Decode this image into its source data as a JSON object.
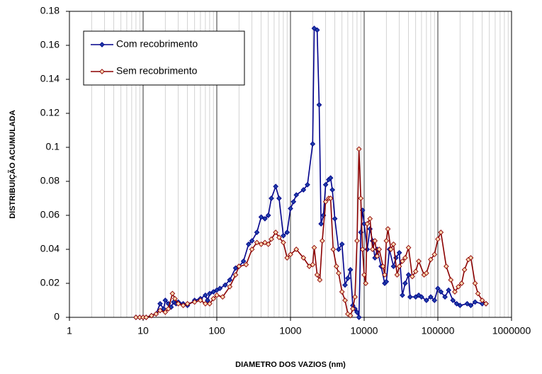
{
  "chart_data": {
    "type": "line",
    "xlabel": "DIAMETRO DOS VAZIOS (nm)",
    "ylabel": "DISTRIBUIÇÃO ACUMULADA",
    "xscale": "log",
    "xlim": [
      1,
      1000000
    ],
    "xticks": [
      1,
      10,
      100,
      1000,
      10000,
      100000,
      1000000
    ],
    "ylim": [
      0,
      0.18
    ],
    "yticks": [
      0,
      0.02,
      0.04,
      0.06,
      0.08,
      0.1,
      0.12,
      0.14,
      0.16,
      0.18
    ],
    "grid": true,
    "minor_grid": true,
    "legend": "upper left",
    "series": [
      {
        "name": "Com recobrimento",
        "color": "#00008b",
        "marker_fill": "#1f3fa8",
        "x": [
          8,
          9,
          10,
          11,
          13,
          15,
          17,
          19,
          20,
          22,
          24,
          26,
          28,
          30,
          35,
          40,
          50,
          60,
          70,
          75,
          80,
          90,
          100,
          110,
          130,
          150,
          180,
          200,
          230,
          270,
          300,
          350,
          400,
          450,
          500,
          550,
          630,
          700,
          800,
          900,
          1000,
          1100,
          1200,
          1500,
          1700,
          2000,
          2100,
          2300,
          2450,
          2600,
          2800,
          3000,
          3300,
          3500,
          3700,
          4000,
          4500,
          5000,
          5500,
          6000,
          6500,
          7000,
          7500,
          8000,
          8500,
          9000,
          9500,
          10000,
          11000,
          12000,
          13000,
          14000,
          15000,
          17000,
          19000,
          20000,
          22000,
          25000,
          27000,
          30000,
          33000,
          36000,
          40000,
          42000,
          50000,
          55000,
          60000,
          70000,
          80000,
          90000,
          100000,
          110000,
          125000,
          140000,
          160000,
          180000,
          200000,
          250000,
          280000,
          320000,
          400000,
          450000
        ],
        "values": [
          0,
          0,
          0,
          0,
          0.001,
          0.002,
          0.008,
          0.005,
          0.01,
          0.008,
          0.006,
          0.009,
          0.008,
          0.009,
          0.008,
          0.007,
          0.01,
          0.011,
          0.013,
          0.01,
          0.014,
          0.015,
          0.016,
          0.017,
          0.019,
          0.022,
          0.029,
          0.03,
          0.033,
          0.043,
          0.045,
          0.05,
          0.059,
          0.058,
          0.06,
          0.07,
          0.077,
          0.07,
          0.048,
          0.05,
          0.064,
          0.068,
          0.072,
          0.075,
          0.078,
          0.102,
          0.17,
          0.169,
          0.125,
          0.055,
          0.06,
          0.078,
          0.081,
          0.082,
          0.075,
          0.058,
          0.04,
          0.043,
          0.019,
          0.023,
          0.028,
          0.007,
          0.005,
          0.003,
          0,
          0.05,
          0.063,
          0.055,
          0.04,
          0.052,
          0.045,
          0.035,
          0.04,
          0.03,
          0.02,
          0.021,
          0.04,
          0.03,
          0.035,
          0.038,
          0.013,
          0.02,
          0.025,
          0.012,
          0.012,
          0.013,
          0.012,
          0.01,
          0.012,
          0.01,
          0.017,
          0.015,
          0.012,
          0.016,
          0.01,
          0.008,
          0.007,
          0.008,
          0.007,
          0.009,
          0.008,
          0.008
        ]
      },
      {
        "name": "Sem recobrimento",
        "color": "#8b0000",
        "marker_fill": "#ffd9b3",
        "x": [
          8,
          9,
          10,
          11,
          13,
          15,
          17,
          20,
          22,
          25,
          27,
          30,
          35,
          40,
          50,
          60,
          70,
          80,
          90,
          100,
          120,
          150,
          180,
          200,
          250,
          300,
          350,
          400,
          450,
          500,
          550,
          630,
          700,
          800,
          900,
          1000,
          1200,
          1500,
          1800,
          2000,
          2100,
          2300,
          2500,
          2700,
          3000,
          3300,
          3500,
          3800,
          4200,
          4500,
          5000,
          5500,
          6000,
          6500,
          7000,
          7500,
          8000,
          8500,
          9000,
          9500,
          10000,
          10500,
          11000,
          12000,
          13000,
          14000,
          15000,
          16000,
          18000,
          19000,
          20000,
          21000,
          23000,
          25000,
          28000,
          30000,
          33000,
          36000,
          40000,
          45000,
          50000,
          55000,
          65000,
          70000,
          80000,
          90000,
          100000,
          110000,
          130000,
          150000,
          170000,
          190000,
          210000,
          230000,
          260000,
          280000,
          320000,
          350000,
          400000,
          450000
        ],
        "values": [
          0,
          0,
          0,
          0,
          0.001,
          0.002,
          0.004,
          0.003,
          0.005,
          0.014,
          0.011,
          0.008,
          0.007,
          0.008,
          0.009,
          0.01,
          0.008,
          0.008,
          0.011,
          0.013,
          0.012,
          0.018,
          0.025,
          0.03,
          0.031,
          0.04,
          0.044,
          0.043,
          0.044,
          0.043,
          0.046,
          0.05,
          0.047,
          0.044,
          0.035,
          0.037,
          0.04,
          0.035,
          0.03,
          0.031,
          0.041,
          0.025,
          0.022,
          0.045,
          0.068,
          0.07,
          0.07,
          0.04,
          0.03,
          0.026,
          0.015,
          0.01,
          0.002,
          0.001,
          0.005,
          0.012,
          0.045,
          0.099,
          0.07,
          0.04,
          0.025,
          0.02,
          0.055,
          0.058,
          0.04,
          0.045,
          0.036,
          0.04,
          0.03,
          0.025,
          0.045,
          0.052,
          0.04,
          0.043,
          0.025,
          0.03,
          0.033,
          0.035,
          0.041,
          0.024,
          0.027,
          0.033,
          0.025,
          0.026,
          0.034,
          0.037,
          0.046,
          0.05,
          0.03,
          0.022,
          0.015,
          0.018,
          0.02,
          0.028,
          0.034,
          0.035,
          0.02,
          0.014,
          0.01,
          0.008
        ]
      }
    ]
  }
}
